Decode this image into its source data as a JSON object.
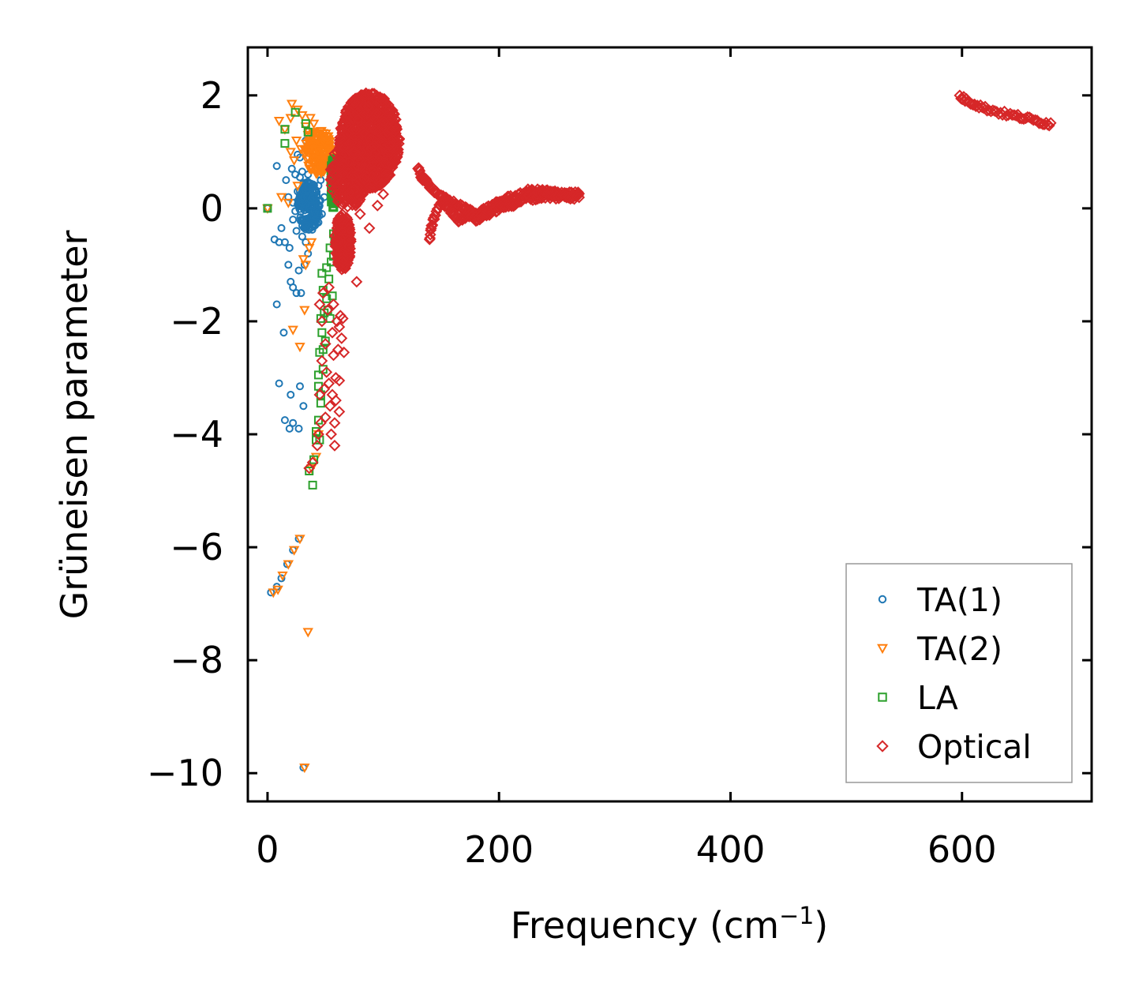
{
  "chart_data": {
    "type": "scatter",
    "title": "",
    "xlabel": "Frequency (cm",
    "xlabel_sup": "−1",
    "xlabel_suffix": ")",
    "ylabel": "Grüneisen parameter",
    "xlim": [
      -17,
      712
    ],
    "ylim": [
      -10.5,
      2.85
    ],
    "xticks": [
      0,
      200,
      400,
      600
    ],
    "xtick_labels": [
      "0",
      "200",
      "400",
      "600"
    ],
    "yticks": [
      2,
      0,
      -2,
      -4,
      -6,
      -8,
      -10
    ],
    "ytick_labels": [
      "2",
      "0",
      "−2",
      "−4",
      "−6",
      "−8",
      "−10"
    ],
    "grid": false,
    "legend_position": "bottom-right",
    "series": [
      {
        "name": "TA(1)",
        "marker": "circle",
        "color": "#1f77b4",
        "points": [
          [
            0,
            0
          ],
          [
            3,
            -6.8
          ],
          [
            8,
            -6.7
          ],
          [
            12,
            -6.55
          ],
          [
            17,
            -6.3
          ],
          [
            22,
            -6.05
          ],
          [
            27,
            -5.85
          ],
          [
            31,
            -9.9
          ],
          [
            10,
            -3.1
          ],
          [
            20,
            -3.3
          ],
          [
            28,
            -3.15
          ],
          [
            31,
            -3.5
          ],
          [
            15,
            -3.75
          ],
          [
            22,
            -3.8
          ],
          [
            27,
            -3.9
          ],
          [
            19,
            -3.9
          ],
          [
            8,
            -1.7
          ],
          [
            14,
            -2.2
          ],
          [
            22,
            -1.4
          ],
          [
            25,
            -1.5
          ],
          [
            29,
            -1.5
          ],
          [
            20,
            -1.3
          ],
          [
            32,
            -1.0
          ],
          [
            27,
            -1.1
          ],
          [
            18,
            -1.0
          ],
          [
            10,
            -0.6
          ],
          [
            6,
            -0.55
          ],
          [
            15,
            -0.6
          ],
          [
            19,
            -0.7
          ],
          [
            12,
            -0.35
          ],
          [
            22,
            -0.2
          ],
          [
            25,
            -0.4
          ],
          [
            30,
            -0.5
          ],
          [
            33,
            -0.6
          ],
          [
            35,
            -0.8
          ],
          [
            8,
            0.75
          ],
          [
            16,
            0.5
          ],
          [
            21,
            0.7
          ],
          [
            24,
            0.6
          ],
          [
            28,
            0.9
          ],
          [
            33,
            1.2
          ],
          [
            36,
            0.8
          ],
          [
            40,
            0.9
          ],
          [
            45,
            0.85
          ],
          [
            48,
            0.8
          ],
          [
            45,
            0.6
          ],
          [
            18,
            0.2
          ],
          [
            22,
            0.1
          ],
          [
            26,
            0.3
          ],
          [
            30,
            0.1
          ],
          [
            34,
            0.2
          ],
          [
            38,
            0.05
          ],
          [
            41,
            0.3
          ],
          [
            44,
            0.4
          ],
          [
            47,
            -0.1
          ],
          [
            24,
            -0.05
          ],
          [
            29,
            -0.2
          ],
          [
            33,
            -0.3
          ],
          [
            37,
            -0.35
          ],
          [
            41,
            -0.1
          ],
          [
            44,
            -0.25
          ],
          [
            28,
            0.55
          ],
          [
            31,
            0.45
          ],
          [
            35,
            0.6
          ],
          [
            39,
            0.3
          ],
          [
            42,
            0.15
          ],
          [
            46,
            0.5
          ],
          [
            49,
            0.2
          ],
          [
            26,
            0.95
          ],
          [
            30,
            0.65
          ]
        ],
        "clusters": [
          [
            36,
            0.05,
            10,
            0.45,
            170
          ]
        ]
      },
      {
        "name": "TA(2)",
        "marker": "triangle-down",
        "color": "#ff7f0e",
        "points": [
          [
            0,
            0
          ],
          [
            5,
            -6.8
          ],
          [
            9,
            -6.75
          ],
          [
            13,
            -6.5
          ],
          [
            18,
            -6.3
          ],
          [
            23,
            -6.05
          ],
          [
            28,
            -5.85
          ],
          [
            32,
            -9.9
          ],
          [
            35,
            -7.5
          ],
          [
            22,
            -2.15
          ],
          [
            28,
            -2.45
          ],
          [
            32,
            -1.8
          ],
          [
            10,
            1.55
          ],
          [
            15,
            1.4
          ],
          [
            21,
            1.85
          ],
          [
            26,
            1.75
          ],
          [
            30,
            1.65
          ],
          [
            33,
            1.45
          ],
          [
            37,
            1.6
          ],
          [
            40,
            1.5
          ],
          [
            20,
            1.6
          ],
          [
            25,
            1.2
          ],
          [
            35,
            1.3
          ],
          [
            12,
            0.2
          ],
          [
            18,
            0.1
          ],
          [
            20,
            1.0
          ],
          [
            23,
            0.85
          ],
          [
            29,
            1.05
          ],
          [
            44,
            1.3
          ],
          [
            48,
            1.2
          ],
          [
            26,
            0.4
          ],
          [
            31,
            -0.9
          ],
          [
            33,
            -1.0
          ],
          [
            36,
            -0.7
          ],
          [
            38,
            -0.6
          ],
          [
            44,
            -4.0
          ],
          [
            38,
            -4.6
          ],
          [
            42,
            -4.4
          ]
        ],
        "clusters": [
          [
            44,
            1.0,
            12,
            0.4,
            140
          ]
        ]
      },
      {
        "name": "LA",
        "marker": "square",
        "color": "#2ca02c",
        "points": [
          [
            0,
            0
          ],
          [
            15,
            1.15
          ],
          [
            15,
            1.4
          ],
          [
            24,
            1.7
          ],
          [
            33,
            1.5
          ],
          [
            35,
            1.35
          ],
          [
            39,
            -4.9
          ],
          [
            36,
            -4.65
          ],
          [
            40,
            -4.45
          ],
          [
            42,
            -4.1
          ],
          [
            45,
            -4.1
          ],
          [
            42,
            -3.95
          ],
          [
            44,
            -3.75
          ],
          [
            46,
            -3.45
          ],
          [
            46,
            -3.3
          ],
          [
            44,
            -3.15
          ],
          [
            44,
            -2.95
          ],
          [
            48,
            -2.85
          ],
          [
            45,
            -2.55
          ],
          [
            48,
            -2.5
          ],
          [
            50,
            -2.35
          ],
          [
            47,
            -2.2
          ],
          [
            46,
            -1.95
          ],
          [
            49,
            -1.85
          ],
          [
            52,
            -1.8
          ],
          [
            54,
            -1.95
          ],
          [
            51,
            -1.6
          ],
          [
            56,
            -1.55
          ],
          [
            48,
            -1.45
          ],
          [
            53,
            -1.25
          ],
          [
            47,
            -1.15
          ],
          [
            51,
            -1.05
          ],
          [
            55,
            -0.95
          ],
          [
            57,
            -0.85
          ],
          [
            54,
            -0.7
          ],
          [
            58,
            -0.6
          ],
          [
            60,
            -0.5
          ],
          [
            57,
            -0.45
          ],
          [
            56,
            0.85
          ],
          [
            58,
            0.7
          ],
          [
            60,
            0.5
          ]
        ],
        "clusters": [
          [
            57,
            0.45,
            3,
            0.45,
            80
          ]
        ]
      },
      {
        "name": "Optical",
        "marker": "diamond",
        "color": "#d62728",
        "points": [
          [
            36,
            -4.6
          ],
          [
            39,
            -4.5
          ],
          [
            43,
            -4.2
          ],
          [
            44,
            -4.0
          ],
          [
            46,
            -3.8
          ],
          [
            50,
            -3.7
          ],
          [
            54,
            -3.5
          ],
          [
            56,
            -3.3
          ],
          [
            59,
            -3.4
          ],
          [
            62,
            -3.6
          ],
          [
            58,
            -3.8
          ],
          [
            55,
            -4.0
          ],
          [
            58,
            -4.2
          ],
          [
            45,
            -3.3
          ],
          [
            49,
            -3.2
          ],
          [
            53,
            -3.1
          ],
          [
            59,
            -3.0
          ],
          [
            62,
            -3.05
          ],
          [
            47,
            -2.7
          ],
          [
            51,
            -2.9
          ],
          [
            57,
            -2.6
          ],
          [
            61,
            -2.5
          ],
          [
            64,
            -2.3
          ],
          [
            66,
            -2.55
          ],
          [
            50,
            -2.4
          ],
          [
            56,
            -2.2
          ],
          [
            60,
            -2.0
          ],
          [
            63,
            -1.9
          ],
          [
            47,
            -2.0
          ],
          [
            52,
            -1.8
          ],
          [
            57,
            -1.7
          ],
          [
            48,
            -1.5
          ],
          [
            53,
            -1.4
          ],
          [
            45,
            -1.7
          ],
          [
            62,
            -2.1
          ],
          [
            65,
            -1.95
          ],
          [
            77,
            -1.3
          ],
          [
            88,
            -0.35
          ],
          [
            80,
            -0.1
          ],
          [
            95,
            0.05
          ],
          [
            100,
            0.25
          ]
        ],
        "clusters": [
          [
            88,
            1.2,
            26,
            0.85,
            900
          ],
          [
            65,
            -0.6,
            7,
            0.5,
            200
          ],
          [
            70,
            0.6,
            16,
            0.6,
            250
          ]
        ],
        "bands": [
          [
            [
              130,
              0.7
            ],
            [
              133,
              0.55
            ],
            [
              136,
              0.5
            ],
            [
              140,
              0.4
            ],
            [
              145,
              0.3
            ],
            [
              150,
              0.2
            ],
            [
              155,
              0.15
            ],
            [
              160,
              0.1
            ],
            [
              165,
              0.05
            ],
            [
              170,
              0.0
            ],
            [
              175,
              -0.05
            ],
            [
              180,
              -0.1
            ],
            [
              185,
              -0.05
            ],
            [
              190,
              0.0
            ],
            [
              195,
              0.05
            ],
            [
              200,
              0.1
            ],
            [
              205,
              0.15
            ],
            [
              210,
              0.2
            ],
            [
              215,
              0.2
            ],
            [
              220,
              0.25
            ],
            [
              225,
              0.3
            ],
            [
              230,
              0.3
            ],
            [
              235,
              0.3
            ],
            [
              240,
              0.3
            ],
            [
              245,
              0.28
            ],
            [
              250,
              0.27
            ],
            [
              255,
              0.27
            ],
            [
              260,
              0.26
            ],
            [
              265,
              0.25
            ],
            [
              270,
              0.25
            ]
          ],
          [
            [
              140,
              -0.55
            ],
            [
              142,
              -0.3
            ],
            [
              145,
              -0.1
            ],
            [
              150,
              0.1
            ],
            [
              155,
              0.05
            ],
            [
              160,
              -0.1
            ],
            [
              165,
              -0.2
            ],
            [
              170,
              -0.15
            ],
            [
              175,
              -0.1
            ],
            [
              180,
              -0.2
            ],
            [
              185,
              -0.15
            ],
            [
              190,
              -0.1
            ],
            [
              195,
              -0.05
            ],
            [
              200,
              0.0
            ],
            [
              205,
              0.05
            ],
            [
              210,
              0.05
            ],
            [
              215,
              0.1
            ],
            [
              220,
              0.15
            ],
            [
              225,
              0.2
            ],
            [
              230,
              0.18
            ],
            [
              235,
              0.2
            ],
            [
              240,
              0.22
            ],
            [
              245,
              0.2
            ],
            [
              250,
              0.2
            ],
            [
              255,
              0.22
            ],
            [
              260,
              0.21
            ],
            [
              265,
              0.2
            ],
            [
              270,
              0.22
            ]
          ],
          [
            [
              598,
              1.98
            ],
            [
              605,
              1.9
            ],
            [
              612,
              1.84
            ],
            [
              620,
              1.77
            ],
            [
              630,
              1.71
            ],
            [
              640,
              1.66
            ],
            [
              650,
              1.62
            ],
            [
              660,
              1.57
            ],
            [
              670,
              1.52
            ],
            [
              678,
              1.49
            ]
          ]
        ]
      }
    ]
  }
}
